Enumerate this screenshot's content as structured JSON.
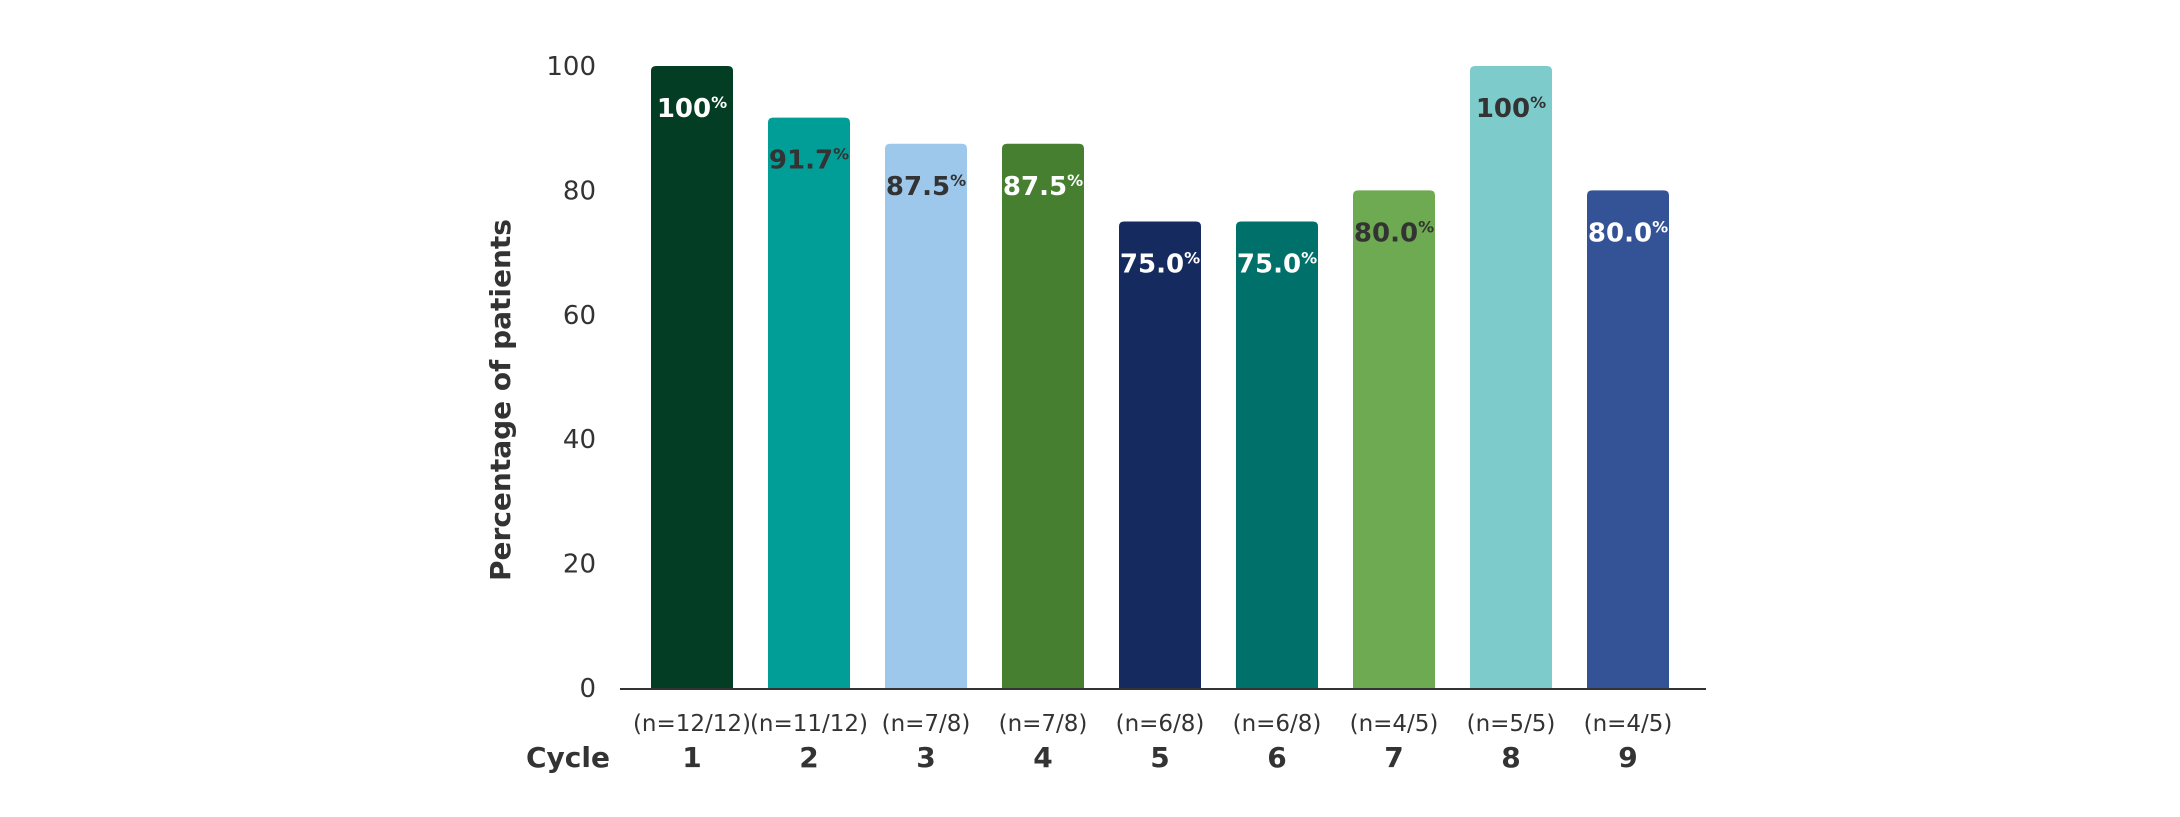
{
  "chart_data": {
    "type": "bar",
    "ylabel": "Percentage of patients",
    "xlabel": "Cycle",
    "ylim": [
      0,
      100
    ],
    "yticks": [
      0,
      20,
      40,
      60,
      80,
      100
    ],
    "grid": false,
    "categories": [
      "1",
      "2",
      "3",
      "4",
      "5",
      "6",
      "7",
      "8",
      "9"
    ],
    "counts": [
      "(n=12/12)",
      "(n=11/12)",
      "(n=7/8)",
      "(n=7/8)",
      "(n=6/8)",
      "(n=6/8)",
      "(n=4/5)",
      "(n=5/5)",
      "(n=4/5)"
    ],
    "values": [
      100,
      91.7,
      87.5,
      87.5,
      75.0,
      75.0,
      80.0,
      100,
      80.0
    ],
    "value_labels": [
      "100",
      "91.7",
      "87.5",
      "87.5",
      "75.0",
      "75.0",
      "80.0",
      "100",
      "80.0"
    ],
    "value_suffix": "%",
    "colors": [
      "#033d23",
      "#009e97",
      "#9dc8ec",
      "#467f30",
      "#152b5f",
      "#00706a",
      "#6daa52",
      "#7dcccb",
      "#345396"
    ],
    "label_colors": [
      "#ffffff",
      "#333333",
      "#333333",
      "#ffffff",
      "#ffffff",
      "#ffffff",
      "#333333",
      "#333333",
      "#ffffff"
    ]
  }
}
